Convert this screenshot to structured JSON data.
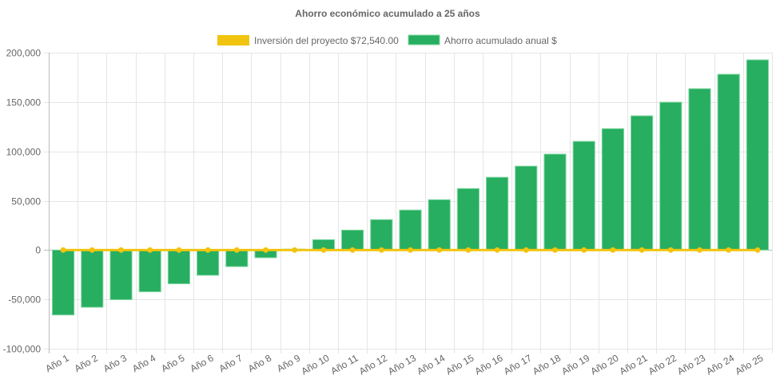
{
  "chart_data": {
    "type": "bar",
    "title": "Ahorro económico acumulado a 25 años",
    "legend_position": "top",
    "grid": true,
    "ylim": [
      -100000,
      200000
    ],
    "yticks": [
      -100000,
      -50000,
      0,
      50000,
      100000,
      150000,
      200000
    ],
    "ytick_labels": [
      "-100,000",
      "-50,000",
      "0",
      "50,000",
      "100,000",
      "150,000",
      "200,000"
    ],
    "categories": [
      "Año 1",
      "Año 2",
      "Año 3",
      "Año 4",
      "Año 5",
      "Año 6",
      "Año 7",
      "Año 8",
      "Año 9",
      "Año 10",
      "Año 11",
      "Año 12",
      "Año 13",
      "Año 14",
      "Año 15",
      "Año 16",
      "Año 17",
      "Año 18",
      "Año 19",
      "Año 20",
      "Año 21",
      "Año 22",
      "Año 23",
      "Año 24",
      "Año 25"
    ],
    "series": [
      {
        "name": "Inversión del proyecto $72,540.00",
        "type": "line",
        "color": "#f1c40f",
        "values": [
          0,
          0,
          0,
          0,
          0,
          0,
          0,
          0,
          0,
          0,
          0,
          0,
          0,
          0,
          0,
          0,
          0,
          0,
          0,
          0,
          0,
          0,
          0,
          0,
          0
        ]
      },
      {
        "name": "Ahorro acumulado anual $",
        "type": "bar",
        "color": "#27ae60",
        "values": [
          -65800,
          -58000,
          -50300,
          -42300,
          -34200,
          -25600,
          -16800,
          -7800,
          900,
          10500,
          20200,
          30800,
          40500,
          51000,
          62300,
          73700,
          85000,
          97200,
          110100,
          123000,
          136000,
          149800,
          163500,
          178100,
          192700
        ]
      }
    ]
  }
}
